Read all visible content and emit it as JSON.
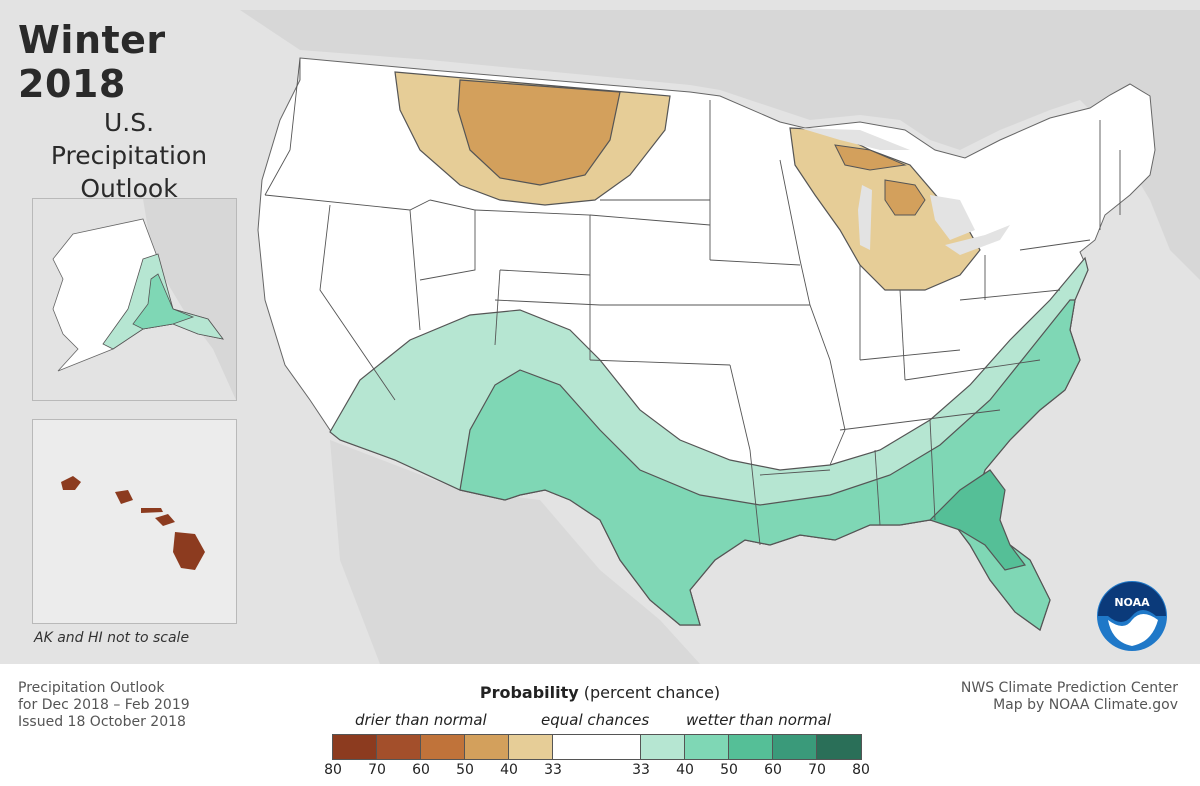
{
  "title": {
    "main": "Winter 2018",
    "line1": "U.S.",
    "line2": "Precipitation",
    "line3": "Outlook"
  },
  "inset_note": "AK and HI not to scale",
  "footer_left": {
    "line1": "Precipitation Outlook",
    "line2": "for Dec 2018 – Feb 2019",
    "line3": "Issued 18 October 2018"
  },
  "footer_right": {
    "line1": "NWS Climate Prediction Center",
    "line2": "Map by NOAA Climate.gov"
  },
  "logo": {
    "text": "NOAA",
    "icon": "noaa-logo-icon"
  },
  "legend": {
    "title_bold": "Probability",
    "title_rest": "(percent chance)",
    "drier_label": "drier than normal",
    "equal_label": "equal chances",
    "wetter_label": "wetter than normal",
    "tick_labels": [
      "80",
      "70",
      "60",
      "50",
      "40",
      "33",
      "33",
      "40",
      "50",
      "60",
      "70",
      "80"
    ],
    "colors": [
      "#8c3b1f",
      "#a34f2b",
      "#c0733a",
      "#d3a05c",
      "#e6cd97",
      "#ffffff",
      "#b6e6d2",
      "#7fd7b5",
      "#55bf97",
      "#3a9a7a",
      "#2a6f58"
    ]
  },
  "map_colors": {
    "background": "#e3e3e3",
    "land": "#ffffff",
    "state_lines": "#555555",
    "dry_light": "#e6cd97",
    "dry_mid": "#d3a05c",
    "wet_light": "#b6e6d2",
    "wet_mid": "#7fd7b5",
    "wet_dark": "#55bf97",
    "hawaii": "#8c3b1f"
  }
}
